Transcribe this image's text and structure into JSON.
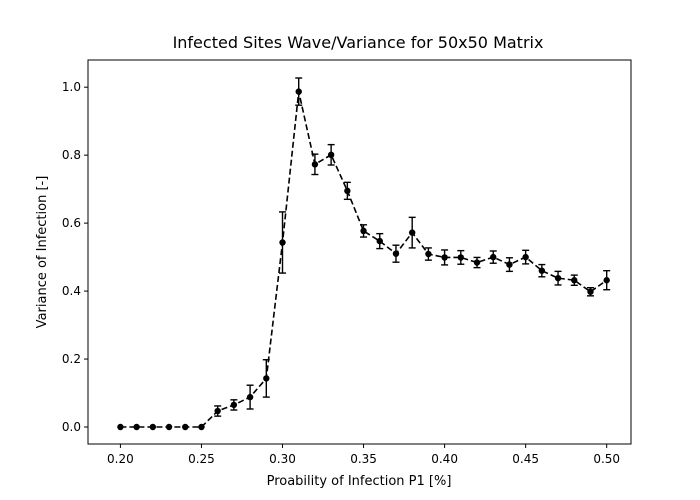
{
  "chart_data": {
    "type": "line",
    "title": "Infected Sites Wave/Variance for 50x50 Matrix",
    "xlabel": "Proability of Infection P1 [%]",
    "ylabel": "Variance of Infection [-]",
    "xlim": [
      0.18,
      0.515
    ],
    "ylim": [
      -0.05,
      1.08
    ],
    "x_ticks": [
      0.2,
      0.25,
      0.3,
      0.35,
      0.4,
      0.45,
      0.5
    ],
    "x_tick_labels": [
      "0.20",
      "0.25",
      "0.30",
      "0.35",
      "0.40",
      "0.45",
      "0.50"
    ],
    "y_ticks": [
      0.0,
      0.2,
      0.4,
      0.6,
      0.8,
      1.0
    ],
    "y_tick_labels": [
      "0.0",
      "0.2",
      "0.4",
      "0.6",
      "0.8",
      "1.0"
    ],
    "grid": false,
    "line_style": "dashed",
    "marker": "circle",
    "color": "#000000",
    "series": [
      {
        "x": [
          0.2,
          0.21,
          0.22,
          0.23,
          0.24,
          0.25,
          0.26,
          0.27,
          0.28,
          0.29,
          0.3,
          0.31,
          0.32,
          0.33,
          0.34,
          0.35,
          0.36,
          0.37,
          0.38,
          0.39,
          0.4,
          0.41,
          0.42,
          0.43,
          0.44,
          0.45,
          0.46,
          0.47,
          0.48,
          0.49,
          0.5
        ],
        "y": [
          0.0,
          0.0,
          0.0,
          0.0,
          0.0,
          0.0,
          0.047,
          0.065,
          0.088,
          0.143,
          0.543,
          0.987,
          0.773,
          0.801,
          0.695,
          0.577,
          0.547,
          0.51,
          0.572,
          0.509,
          0.499,
          0.499,
          0.484,
          0.5,
          0.478,
          0.5,
          0.46,
          0.438,
          0.432,
          0.398,
          0.432
        ],
        "err": [
          0.0,
          0.0,
          0.0,
          0.0,
          0.0,
          0.0,
          0.015,
          0.015,
          0.035,
          0.055,
          0.09,
          0.04,
          0.03,
          0.03,
          0.025,
          0.018,
          0.022,
          0.025,
          0.045,
          0.018,
          0.022,
          0.02,
          0.015,
          0.018,
          0.02,
          0.02,
          0.018,
          0.02,
          0.015,
          0.012,
          0.028
        ]
      }
    ]
  }
}
